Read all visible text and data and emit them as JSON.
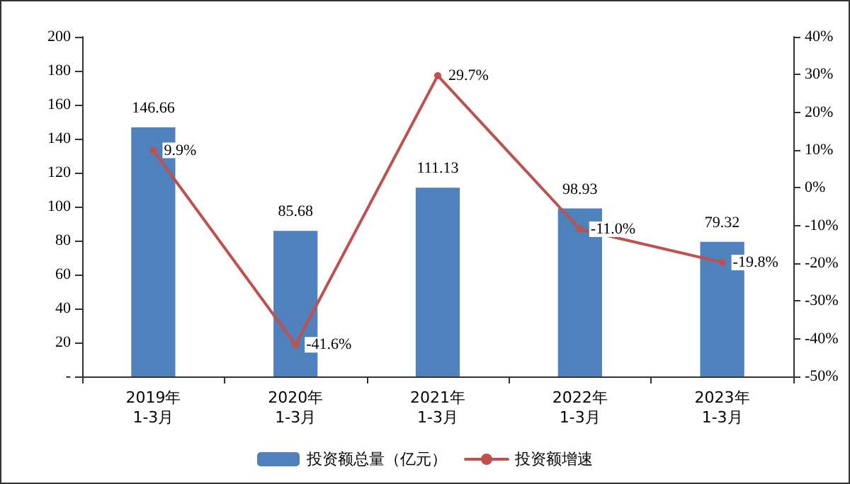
{
  "chart_data": {
    "type": "bar",
    "categories": [
      "2019年\n1-3月",
      "2020年\n1-3月",
      "2021年\n1-3月",
      "2022年\n1-3月",
      "2023年\n1-3月"
    ],
    "series": [
      {
        "name": "投资额总量（亿元）",
        "color": "#4f81bd",
        "values": [
          146.66,
          85.68,
          111.13,
          98.93,
          79.32
        ],
        "value_labels": [
          "146.66",
          "85.68",
          "111.13",
          "98.93",
          "79.32"
        ]
      },
      {
        "name": "投资额增速",
        "type": "line",
        "axis": "y2",
        "color": "#c0504d",
        "marker": "circle",
        "values": [
          9.9,
          -41.6,
          29.7,
          -11.0,
          -19.8
        ],
        "value_labels": [
          "9.9%",
          "-41.6%",
          "29.7%",
          "-11.0%",
          "-19.8%"
        ]
      }
    ],
    "ylim": [
      0,
      200
    ],
    "yticks": [
      {
        "value": 0,
        "label": "-"
      },
      20,
      40,
      60,
      80,
      100,
      120,
      140,
      160,
      180,
      200
    ],
    "y2lim": [
      -50,
      40
    ],
    "y2ticks": [
      {
        "value": -50,
        "label": "-50%"
      },
      {
        "value": -40,
        "label": "-40%"
      },
      {
        "value": -30,
        "label": "-30%"
      },
      {
        "value": -20,
        "label": "-20%"
      },
      {
        "value": -10,
        "label": "-10%"
      },
      {
        "value": 0,
        "label": "0%"
      },
      {
        "value": 10,
        "label": "10%"
      },
      {
        "value": 20,
        "label": "20%"
      },
      {
        "value": 30,
        "label": "30%"
      },
      {
        "value": 40,
        "label": "40%"
      }
    ],
    "grid": false,
    "legend": "bottom"
  }
}
